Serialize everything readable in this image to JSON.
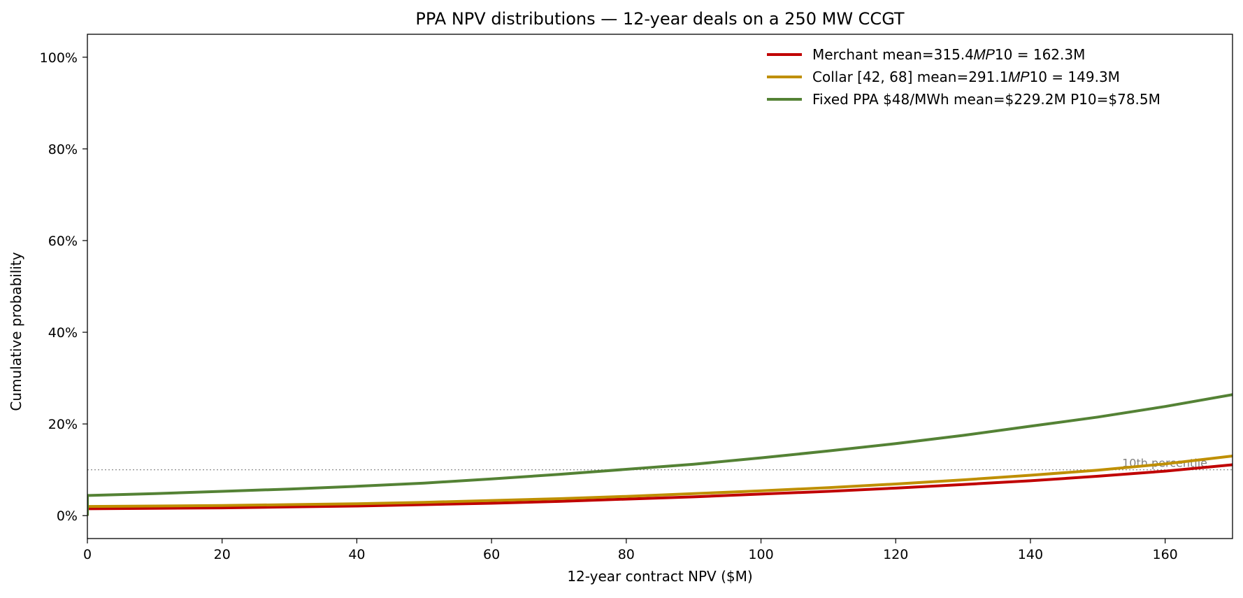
{
  "chart_data": {
    "type": "line",
    "title": "PPA NPV distributions — 12-year deals on a 250 MW CCGT",
    "xlabel": "12-year contract NPV  ($M)",
    "ylabel": "Cumulative probability",
    "xlim": [
      0,
      170
    ],
    "ylim": [
      -0.05,
      1.05
    ],
    "xticks": [
      0,
      20,
      40,
      60,
      80,
      100,
      120,
      140,
      160
    ],
    "xtick_labels": [
      "0",
      "20",
      "40",
      "60",
      "80",
      "100",
      "120",
      "140",
      "160"
    ],
    "yticks": [
      0,
      0.2,
      0.4,
      0.6,
      0.8,
      1.0
    ],
    "ytick_labels": [
      "0%",
      "20%",
      "40%",
      "60%",
      "80%",
      "100%"
    ],
    "grid": false,
    "legend_position": "top-right",
    "reference_line": {
      "y": 0.1,
      "label": "10th percentile",
      "color": "#808080"
    },
    "series": [
      {
        "name": "Merchant   mean=315.4𝑀𝑃10 = 162.3M",
        "color": "#c00000",
        "x": [
          0,
          10,
          20,
          30,
          40,
          50,
          60,
          70,
          80,
          90,
          100,
          110,
          120,
          130,
          140,
          150,
          160,
          170
        ],
        "y": [
          0.015,
          0.016,
          0.017,
          0.019,
          0.021,
          0.024,
          0.027,
          0.031,
          0.036,
          0.041,
          0.047,
          0.053,
          0.06,
          0.068,
          0.076,
          0.086,
          0.097,
          0.111
        ]
      },
      {
        "name": "Collar [42, 68]   mean=291.1𝑀𝑃10 = 149.3M",
        "color": "#bf8f00",
        "x": [
          0,
          10,
          20,
          30,
          40,
          50,
          60,
          70,
          80,
          90,
          100,
          110,
          120,
          130,
          140,
          150,
          160,
          170
        ],
        "y": [
          0.02,
          0.021,
          0.022,
          0.024,
          0.026,
          0.029,
          0.033,
          0.037,
          0.042,
          0.048,
          0.054,
          0.061,
          0.069,
          0.078,
          0.088,
          0.099,
          0.113,
          0.13
        ]
      },
      {
        "name": "Fixed PPA $48/MWh   mean=$229.2M   P10=$78.5M",
        "color": "#548235",
        "x": [
          0,
          10,
          20,
          30,
          40,
          50,
          60,
          70,
          80,
          90,
          100,
          110,
          120,
          130,
          140,
          150,
          160,
          170
        ],
        "y": [
          0.044,
          0.048,
          0.053,
          0.058,
          0.064,
          0.071,
          0.08,
          0.09,
          0.101,
          0.112,
          0.126,
          0.141,
          0.157,
          0.175,
          0.195,
          0.215,
          0.238,
          0.264
        ]
      }
    ]
  }
}
